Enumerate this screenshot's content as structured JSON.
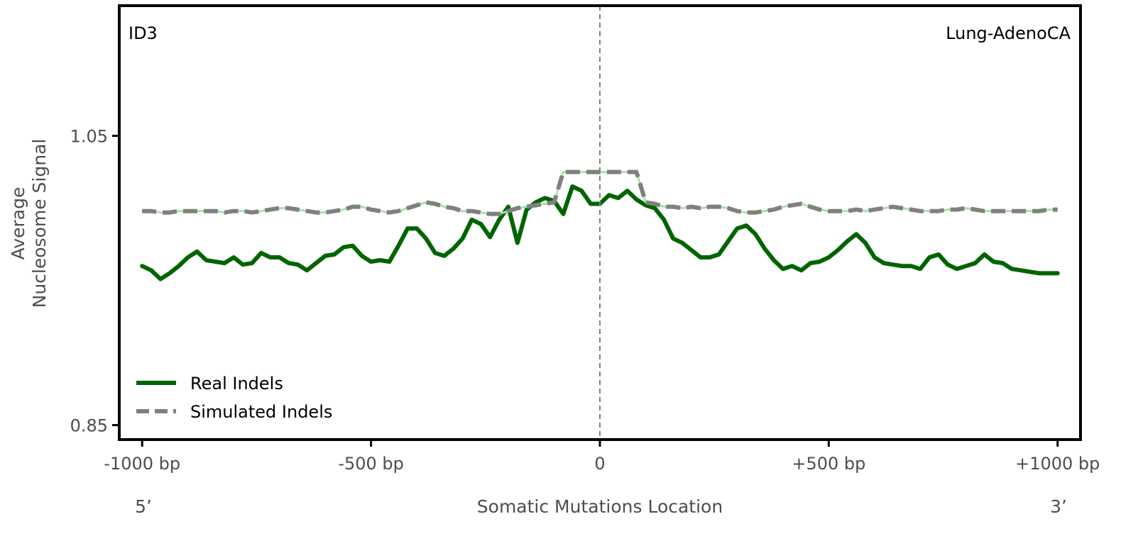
{
  "chart_data": {
    "type": "line",
    "signature_label": "ID3",
    "cancer_type_label": "Lung-AdenoCA",
    "xlabel": "Somatic Mutations Location",
    "ylabel_line1": "Average",
    "ylabel_line2": "Nucleosome Signal",
    "end_label_left": "5’",
    "end_label_right": "3’",
    "xlim": [
      -1050,
      1050
    ],
    "ylim": [
      0.84,
      1.14
    ],
    "x_ticks": [
      {
        "value": -1000,
        "label": "-1000 bp"
      },
      {
        "value": -500,
        "label": "-500 bp"
      },
      {
        "value": 0,
        "label": "0"
      },
      {
        "value": 500,
        "label": "+500 bp"
      },
      {
        "value": 1000,
        "label": "+1000 bp"
      }
    ],
    "y_ticks": [
      {
        "value": 1.05,
        "label": "1.05"
      },
      {
        "value": 0.85,
        "label": "0.85"
      }
    ],
    "reference_line_x": 0,
    "legend_position": "lower-left",
    "series": [
      {
        "name": "Real Indels",
        "color": "#006400",
        "style": "solid",
        "x": [
          -1000,
          -980,
          -960,
          -940,
          -920,
          -900,
          -880,
          -860,
          -840,
          -820,
          -800,
          -780,
          -760,
          -740,
          -720,
          -700,
          -680,
          -660,
          -640,
          -620,
          -600,
          -580,
          -560,
          -540,
          -520,
          -500,
          -480,
          -460,
          -440,
          -420,
          -400,
          -380,
          -360,
          -340,
          -320,
          -300,
          -280,
          -260,
          -240,
          -220,
          -200,
          -180,
          -160,
          -140,
          -120,
          -100,
          -80,
          -60,
          -40,
          -20,
          0,
          20,
          40,
          60,
          80,
          100,
          120,
          140,
          160,
          180,
          200,
          220,
          240,
          260,
          280,
          300,
          320,
          340,
          360,
          380,
          400,
          420,
          440,
          460,
          480,
          500,
          520,
          540,
          560,
          580,
          600,
          620,
          640,
          660,
          680,
          700,
          720,
          740,
          760,
          780,
          800,
          820,
          840,
          860,
          880,
          900,
          920,
          940,
          960,
          980,
          1000
        ],
        "y": [
          0.96,
          0.957,
          0.951,
          0.955,
          0.96,
          0.966,
          0.97,
          0.964,
          0.963,
          0.962,
          0.966,
          0.961,
          0.962,
          0.969,
          0.966,
          0.966,
          0.962,
          0.961,
          0.957,
          0.962,
          0.967,
          0.968,
          0.973,
          0.974,
          0.967,
          0.963,
          0.964,
          0.963,
          0.974,
          0.986,
          0.986,
          0.979,
          0.969,
          0.967,
          0.972,
          0.979,
          0.992,
          0.989,
          0.98,
          0.992,
          1.001,
          0.976,
          0.999,
          1.004,
          1.007,
          1.005,
          0.996,
          1.015,
          1.012,
          1.003,
          1.003,
          1.009,
          1.007,
          1.012,
          1.006,
          1.002,
          1.0,
          0.992,
          0.979,
          0.976,
          0.971,
          0.966,
          0.966,
          0.968,
          0.977,
          0.986,
          0.988,
          0.982,
          0.972,
          0.964,
          0.958,
          0.96,
          0.957,
          0.962,
          0.963,
          0.966,
          0.971,
          0.977,
          0.982,
          0.976,
          0.966,
          0.962,
          0.961,
          0.96,
          0.96,
          0.958,
          0.966,
          0.968,
          0.961,
          0.958,
          0.96,
          0.962,
          0.968,
          0.963,
          0.962,
          0.958,
          0.957,
          0.956,
          0.955,
          0.955,
          0.955
        ]
      },
      {
        "name": "Simulated Indels",
        "color": "#808080",
        "style": "dashed",
        "x": [
          -1000,
          -980,
          -960,
          -940,
          -920,
          -900,
          -880,
          -860,
          -840,
          -820,
          -800,
          -780,
          -760,
          -740,
          -720,
          -700,
          -680,
          -660,
          -640,
          -620,
          -600,
          -580,
          -560,
          -540,
          -520,
          -500,
          -480,
          -460,
          -440,
          -420,
          -400,
          -380,
          -360,
          -340,
          -320,
          -300,
          -280,
          -260,
          -240,
          -220,
          -200,
          -180,
          -160,
          -140,
          -120,
          -100,
          -80,
          -60,
          -40,
          -20,
          0,
          20,
          40,
          60,
          80,
          100,
          120,
          140,
          160,
          180,
          200,
          220,
          240,
          260,
          280,
          300,
          320,
          340,
          360,
          380,
          400,
          420,
          440,
          460,
          480,
          500,
          520,
          540,
          560,
          580,
          600,
          620,
          640,
          660,
          680,
          700,
          720,
          740,
          760,
          780,
          800,
          820,
          840,
          860,
          880,
          900,
          920,
          940,
          960,
          980,
          1000
        ],
        "y": [
          0.998,
          0.998,
          0.997,
          0.997,
          0.998,
          0.998,
          0.998,
          0.998,
          0.998,
          0.997,
          0.998,
          0.998,
          0.997,
          0.998,
          0.999,
          1.0,
          1.0,
          0.999,
          0.998,
          0.997,
          0.997,
          0.998,
          0.999,
          1.001,
          1.001,
          0.999,
          0.998,
          0.997,
          0.998,
          1.0,
          1.002,
          1.004,
          1.003,
          1.001,
          1.0,
          0.998,
          0.998,
          0.997,
          0.996,
          0.996,
          0.998,
          1.0,
          1.001,
          1.002,
          1.003,
          1.004,
          1.025,
          1.025,
          1.025,
          1.025,
          1.025,
          1.025,
          1.025,
          1.025,
          1.025,
          1.004,
          1.003,
          1.001,
          1.001,
          1.0,
          1.001,
          1.0,
          1.001,
          1.001,
          1.0,
          0.998,
          0.997,
          0.997,
          0.998,
          0.999,
          1.001,
          1.002,
          1.003,
          1.001,
          0.999,
          0.998,
          0.998,
          0.998,
          0.999,
          0.998,
          0.999,
          1.0,
          1.001,
          1.0,
          0.999,
          0.998,
          0.998,
          0.998,
          0.999,
          0.999,
          1.0,
          0.999,
          0.998,
          0.998,
          0.998,
          0.998,
          0.998,
          0.998,
          0.998,
          0.999,
          0.999
        ]
      }
    ]
  }
}
